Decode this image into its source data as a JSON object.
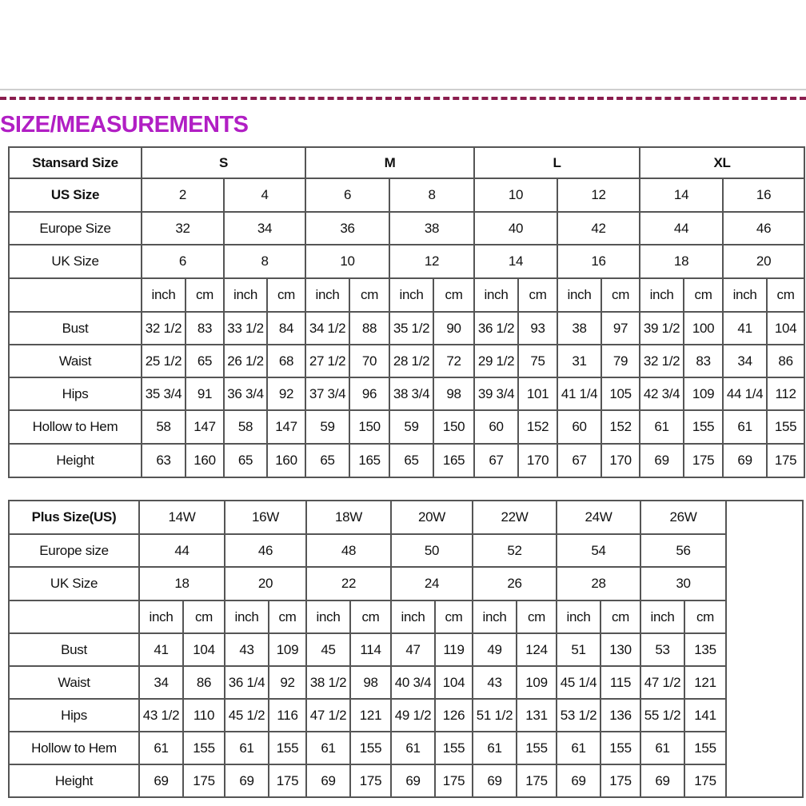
{
  "title": "SIZE/MEASUREMENTS",
  "colors": {
    "title": "#b11fc4",
    "dashed_rule": "#8a1d4e",
    "grid": "#555555"
  },
  "standard_table": {
    "header_label": "Stansard Size",
    "groups": [
      "S",
      "M",
      "L",
      "XL"
    ],
    "us_label": "US Size",
    "us_sizes": [
      "2",
      "4",
      "6",
      "8",
      "10",
      "12",
      "14",
      "16"
    ],
    "europe_label": "Europe Size",
    "europe_sizes": [
      "32",
      "34",
      "36",
      "38",
      "40",
      "42",
      "44",
      "46"
    ],
    "uk_label": "UK Size",
    "uk_sizes": [
      "6",
      "8",
      "10",
      "12",
      "14",
      "16",
      "18",
      "20"
    ],
    "unit_inch": "inch",
    "unit_cm": "cm",
    "rows": [
      {
        "label": "Bust",
        "values": [
          "32 1/2",
          "83",
          "33 1/2",
          "84",
          "34 1/2",
          "88",
          "35 1/2",
          "90",
          "36 1/2",
          "93",
          "38",
          "97",
          "39 1/2",
          "100",
          "41",
          "104"
        ]
      },
      {
        "label": "Waist",
        "values": [
          "25 1/2",
          "65",
          "26 1/2",
          "68",
          "27 1/2",
          "70",
          "28 1/2",
          "72",
          "29 1/2",
          "75",
          "31",
          "79",
          "32 1/2",
          "83",
          "34",
          "86"
        ]
      },
      {
        "label": "Hips",
        "values": [
          "35 3/4",
          "91",
          "36 3/4",
          "92",
          "37 3/4",
          "96",
          "38 3/4",
          "98",
          "39 3/4",
          "101",
          "41 1/4",
          "105",
          "42 3/4",
          "109",
          "44 1/4",
          "112"
        ]
      },
      {
        "label": "Hollow to Hem",
        "values": [
          "58",
          "147",
          "58",
          "147",
          "59",
          "150",
          "59",
          "150",
          "60",
          "152",
          "60",
          "152",
          "61",
          "155",
          "61",
          "155"
        ]
      },
      {
        "label": "Height",
        "values": [
          "63",
          "160",
          "65",
          "160",
          "65",
          "165",
          "65",
          "165",
          "67",
          "170",
          "67",
          "170",
          "69",
          "175",
          "69",
          "175"
        ]
      }
    ]
  },
  "plus_table": {
    "header_label": "Plus Size(US)",
    "us_sizes": [
      "14W",
      "16W",
      "18W",
      "20W",
      "22W",
      "24W",
      "26W"
    ],
    "europe_label": "Europe size",
    "europe_sizes": [
      "44",
      "46",
      "48",
      "50",
      "52",
      "54",
      "56"
    ],
    "uk_label": "UK Size",
    "uk_sizes": [
      "18",
      "20",
      "22",
      "24",
      "26",
      "28",
      "30"
    ],
    "unit_inch": "inch",
    "unit_cm": "cm",
    "rows": [
      {
        "label": "Bust",
        "values": [
          "41",
          "104",
          "43",
          "109",
          "45",
          "114",
          "47",
          "119",
          "49",
          "124",
          "51",
          "130",
          "53",
          "135"
        ]
      },
      {
        "label": "Waist",
        "values": [
          "34",
          "86",
          "36 1/4",
          "92",
          "38 1/2",
          "98",
          "40 3/4",
          "104",
          "43",
          "109",
          "45 1/4",
          "115",
          "47 1/2",
          "121"
        ]
      },
      {
        "label": "Hips",
        "values": [
          "43 1/2",
          "110",
          "45 1/2",
          "116",
          "47 1/2",
          "121",
          "49 1/2",
          "126",
          "51 1/2",
          "131",
          "53 1/2",
          "136",
          "55 1/2",
          "141"
        ]
      },
      {
        "label": "Hollow to Hem",
        "values": [
          "61",
          "155",
          "61",
          "155",
          "61",
          "155",
          "61",
          "155",
          "61",
          "155",
          "61",
          "155",
          "61",
          "155"
        ]
      },
      {
        "label": "Height",
        "values": [
          "69",
          "175",
          "69",
          "175",
          "69",
          "175",
          "69",
          "175",
          "69",
          "175",
          "69",
          "175",
          "69",
          "175"
        ]
      }
    ]
  }
}
